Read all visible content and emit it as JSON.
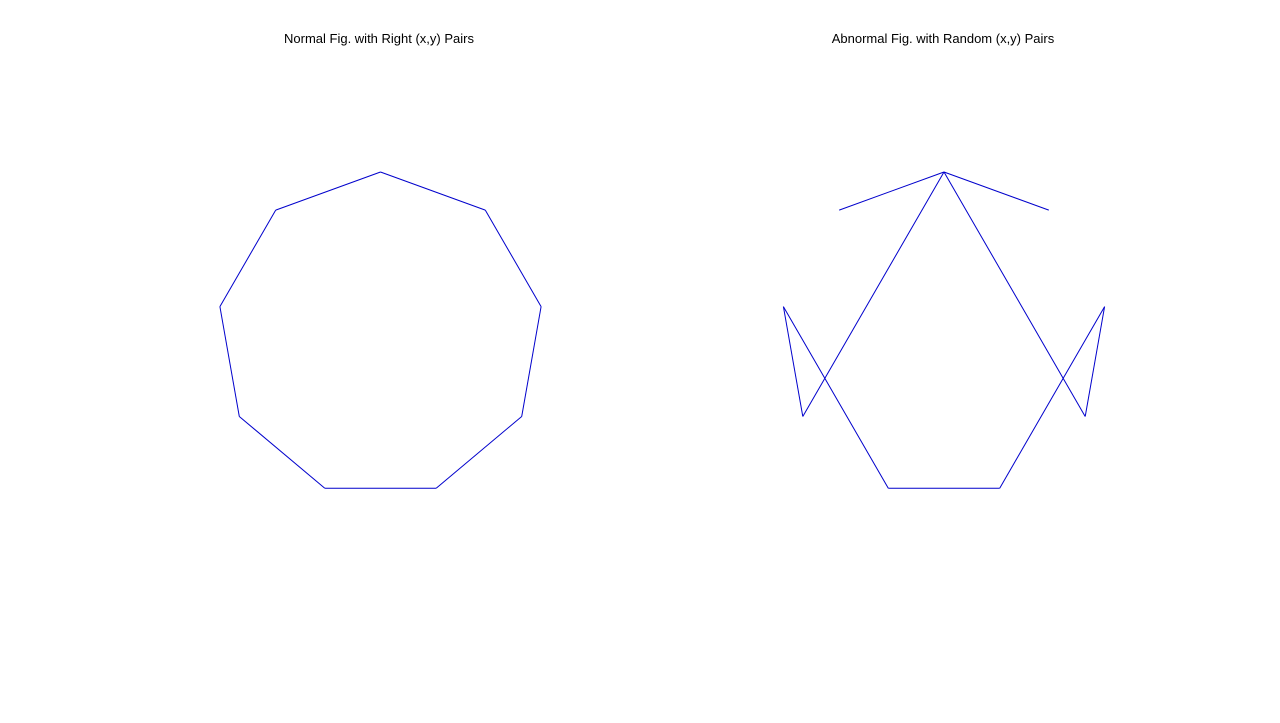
{
  "chart_data": [
    {
      "type": "line",
      "title": "Normal Fig. with Right (x,y) Pairs",
      "xlabel": "",
      "ylabel": "",
      "grid": false,
      "axes_visible": false,
      "line_color": "#0000cc",
      "series": [
        {
          "x": [
            0.0,
            0.643,
            0.985,
            0.866,
            0.342,
            -0.342,
            -0.866,
            -0.985,
            -0.643,
            0.0
          ],
          "y": [
            1.0,
            0.766,
            0.174,
            -0.5,
            -0.94,
            -0.94,
            -0.5,
            0.174,
            0.766,
            1.0
          ]
        }
      ]
    },
    {
      "type": "line",
      "title": "Abnormal Fig. with Random (x,y) Pairs",
      "xlabel": "",
      "ylabel": "",
      "grid": false,
      "axes_visible": false,
      "line_color": "#0000cc",
      "series": [
        {
          "x": [
            0.643,
            0.0,
            0.866,
            0.985,
            0.342,
            -0.342,
            -0.985,
            -0.866,
            0.0,
            -0.643
          ],
          "y": [
            0.766,
            1.0,
            -0.5,
            0.174,
            -0.94,
            -0.94,
            0.174,
            -0.5,
            1.0,
            0.766
          ]
        }
      ]
    }
  ]
}
